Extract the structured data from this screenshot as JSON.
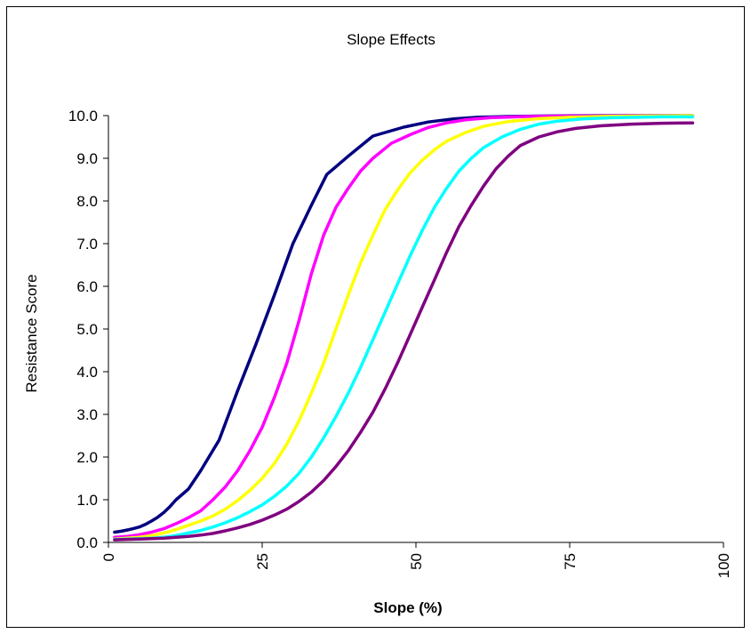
{
  "chart_data": {
    "type": "line",
    "title": "Slope Effects",
    "xlabel": "Slope (%)",
    "ylabel": "Resistance Score",
    "xlim": [
      0,
      100
    ],
    "ylim": [
      0,
      10
    ],
    "x_ticks": [
      "0",
      "25",
      "50",
      "75",
      "100"
    ],
    "y_ticks": [
      "0.0",
      "1.0",
      "2.0",
      "3.0",
      "4.0",
      "5.0",
      "6.0",
      "7.0",
      "8.0",
      "9.0",
      "10.0"
    ],
    "grid": false,
    "legend": false,
    "series": [
      {
        "color": "#000080",
        "points": [
          [
            1,
            0.24
          ],
          [
            2,
            0.26
          ],
          [
            3,
            0.29
          ],
          [
            4,
            0.32
          ],
          [
            5,
            0.36
          ],
          [
            6,
            0.42
          ],
          [
            7,
            0.5
          ],
          [
            8,
            0.59
          ],
          [
            9,
            0.7
          ],
          [
            10,
            0.84
          ],
          [
            11,
            1.0
          ],
          [
            13,
            1.25
          ],
          [
            15,
            1.68
          ],
          [
            18,
            2.4
          ],
          [
            21,
            3.55
          ],
          [
            24,
            4.65
          ],
          [
            27,
            5.8
          ],
          [
            30,
            7.0
          ],
          [
            33,
            7.9
          ],
          [
            35.5,
            8.62
          ],
          [
            39,
            9.05
          ],
          [
            43,
            9.52
          ],
          [
            48,
            9.73
          ],
          [
            52,
            9.85
          ],
          [
            56,
            9.92
          ],
          [
            60,
            9.96
          ],
          [
            65,
            9.98
          ],
          [
            70,
            9.99
          ],
          [
            80,
            10.0
          ],
          [
            95,
            10.0
          ]
        ]
      },
      {
        "color": "#FF00FF",
        "points": [
          [
            1,
            0.12
          ],
          [
            3,
            0.14
          ],
          [
            5,
            0.18
          ],
          [
            7,
            0.24
          ],
          [
            9,
            0.32
          ],
          [
            11,
            0.44
          ],
          [
            13,
            0.58
          ],
          [
            15,
            0.74
          ],
          [
            17,
            1.0
          ],
          [
            19,
            1.3
          ],
          [
            21,
            1.68
          ],
          [
            23,
            2.15
          ],
          [
            25,
            2.7
          ],
          [
            27,
            3.4
          ],
          [
            29,
            4.2
          ],
          [
            31,
            5.2
          ],
          [
            33,
            6.3
          ],
          [
            35,
            7.2
          ],
          [
            37,
            7.85
          ],
          [
            39,
            8.3
          ],
          [
            41,
            8.7
          ],
          [
            43,
            9.0
          ],
          [
            46,
            9.35
          ],
          [
            49,
            9.55
          ],
          [
            52,
            9.72
          ],
          [
            55,
            9.83
          ],
          [
            58,
            9.9
          ],
          [
            62,
            9.95
          ],
          [
            68,
            9.98
          ],
          [
            75,
            9.99
          ],
          [
            95,
            10.0
          ]
        ]
      },
      {
        "color": "#FFFF00",
        "points": [
          [
            1,
            0.08
          ],
          [
            3,
            0.1
          ],
          [
            5,
            0.12
          ],
          [
            7,
            0.16
          ],
          [
            9,
            0.22
          ],
          [
            11,
            0.3
          ],
          [
            13,
            0.4
          ],
          [
            15,
            0.5
          ],
          [
            17,
            0.62
          ],
          [
            19,
            0.78
          ],
          [
            21,
            0.98
          ],
          [
            23,
            1.22
          ],
          [
            25,
            1.5
          ],
          [
            27,
            1.85
          ],
          [
            29,
            2.3
          ],
          [
            31,
            2.85
          ],
          [
            33,
            3.5
          ],
          [
            35,
            4.2
          ],
          [
            37,
            5.0
          ],
          [
            39,
            5.8
          ],
          [
            41,
            6.55
          ],
          [
            43,
            7.2
          ],
          [
            45,
            7.8
          ],
          [
            47,
            8.25
          ],
          [
            49,
            8.65
          ],
          [
            51,
            8.95
          ],
          [
            53,
            9.2
          ],
          [
            55,
            9.4
          ],
          [
            58,
            9.6
          ],
          [
            61,
            9.75
          ],
          [
            65,
            9.86
          ],
          [
            70,
            9.93
          ],
          [
            75,
            9.96
          ],
          [
            80,
            9.98
          ],
          [
            95,
            10.0
          ]
        ]
      },
      {
        "color": "#00FFFF",
        "points": [
          [
            1,
            0.07
          ],
          [
            3,
            0.08
          ],
          [
            5,
            0.09
          ],
          [
            7,
            0.1
          ],
          [
            9,
            0.12
          ],
          [
            11,
            0.16
          ],
          [
            13,
            0.22
          ],
          [
            15,
            0.28
          ],
          [
            17,
            0.36
          ],
          [
            19,
            0.46
          ],
          [
            21,
            0.58
          ],
          [
            23,
            0.72
          ],
          [
            25,
            0.88
          ],
          [
            27,
            1.08
          ],
          [
            29,
            1.32
          ],
          [
            31,
            1.62
          ],
          [
            33,
            2.0
          ],
          [
            35,
            2.45
          ],
          [
            37,
            2.95
          ],
          [
            39,
            3.5
          ],
          [
            41,
            4.1
          ],
          [
            43,
            4.75
          ],
          [
            45,
            5.4
          ],
          [
            47,
            6.05
          ],
          [
            49,
            6.7
          ],
          [
            51,
            7.3
          ],
          [
            53,
            7.85
          ],
          [
            55,
            8.3
          ],
          [
            57,
            8.7
          ],
          [
            59,
            9.0
          ],
          [
            61,
            9.25
          ],
          [
            64,
            9.5
          ],
          [
            67,
            9.68
          ],
          [
            70,
            9.8
          ],
          [
            73,
            9.87
          ],
          [
            77,
            9.92
          ],
          [
            82,
            9.95
          ],
          [
            90,
            9.97
          ],
          [
            95,
            9.97
          ]
        ]
      },
      {
        "color": "#800080",
        "points": [
          [
            1,
            0.06
          ],
          [
            3,
            0.07
          ],
          [
            5,
            0.08
          ],
          [
            7,
            0.09
          ],
          [
            9,
            0.1
          ],
          [
            11,
            0.12
          ],
          [
            13,
            0.14
          ],
          [
            15,
            0.17
          ],
          [
            17,
            0.21
          ],
          [
            19,
            0.27
          ],
          [
            21,
            0.34
          ],
          [
            23,
            0.42
          ],
          [
            25,
            0.52
          ],
          [
            27,
            0.64
          ],
          [
            29,
            0.78
          ],
          [
            31,
            0.96
          ],
          [
            33,
            1.18
          ],
          [
            35,
            1.45
          ],
          [
            37,
            1.78
          ],
          [
            39,
            2.15
          ],
          [
            41,
            2.58
          ],
          [
            43,
            3.05
          ],
          [
            45,
            3.6
          ],
          [
            47,
            4.2
          ],
          [
            49,
            4.85
          ],
          [
            51,
            5.5
          ],
          [
            53,
            6.15
          ],
          [
            55,
            6.8
          ],
          [
            57,
            7.4
          ],
          [
            59,
            7.9
          ],
          [
            61,
            8.35
          ],
          [
            63,
            8.75
          ],
          [
            65,
            9.05
          ],
          [
            67,
            9.3
          ],
          [
            70,
            9.5
          ],
          [
            73,
            9.62
          ],
          [
            76,
            9.7
          ],
          [
            80,
            9.76
          ],
          [
            85,
            9.8
          ],
          [
            90,
            9.82
          ],
          [
            95,
            9.83
          ]
        ]
      }
    ]
  }
}
